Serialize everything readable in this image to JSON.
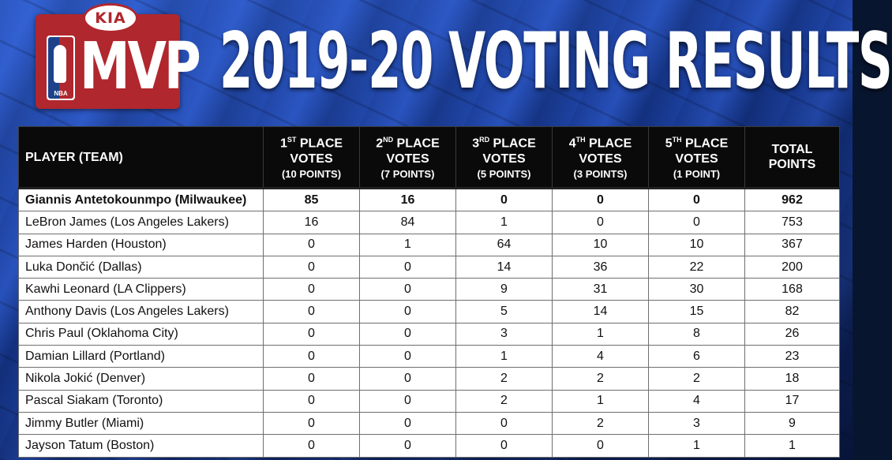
{
  "logo": {
    "kia_text": "KIA",
    "nba_text": "NBA",
    "mvp_text": "MVP"
  },
  "title": "2019-20 VOTING RESULTS",
  "table": {
    "headers": [
      {
        "main": "PLAYER (TEAM)"
      },
      {
        "ordinal": "1",
        "sup": "ST",
        "main": " PLACE",
        "line2": "VOTES",
        "sub": "(10 POINTS)"
      },
      {
        "ordinal": "2",
        "sup": "ND",
        "main": " PLACE",
        "line2": "VOTES",
        "sub": "(7 POINTS)"
      },
      {
        "ordinal": "3",
        "sup": "RD",
        "main": " PLACE",
        "line2": "VOTES",
        "sub": "(5 POINTS)"
      },
      {
        "ordinal": "4",
        "sup": "TH",
        "main": " PLACE",
        "line2": "VOTES",
        "sub": "(3 POINTS)"
      },
      {
        "ordinal": "5",
        "sup": "TH",
        "main": " PLACE",
        "line2": "VOTES",
        "sub": "(1 POINT)"
      },
      {
        "main": "TOTAL",
        "line2": "POINTS"
      }
    ],
    "rows": [
      {
        "player": "Giannis Antetokounmpo (Milwaukee)",
        "v1": "85",
        "v2": "16",
        "v3": "0",
        "v4": "0",
        "v5": "0",
        "total": "962"
      },
      {
        "player": "LeBron James (Los Angeles Lakers)",
        "v1": "16",
        "v2": "84",
        "v3": "1",
        "v4": "0",
        "v5": "0",
        "total": "753"
      },
      {
        "player": "James Harden (Houston)",
        "v1": "0",
        "v2": "1",
        "v3": "64",
        "v4": "10",
        "v5": "10",
        "total": "367"
      },
      {
        "player": "Luka Dončić (Dallas)",
        "v1": "0",
        "v2": "0",
        "v3": "14",
        "v4": "36",
        "v5": "22",
        "total": "200"
      },
      {
        "player": "Kawhi Leonard (LA Clippers)",
        "v1": "0",
        "v2": "0",
        "v3": "9",
        "v4": "31",
        "v5": "30",
        "total": "168"
      },
      {
        "player": "Anthony Davis (Los Angeles Lakers)",
        "v1": "0",
        "v2": "0",
        "v3": "5",
        "v4": "14",
        "v5": "15",
        "total": "82"
      },
      {
        "player": "Chris Paul (Oklahoma City)",
        "v1": "0",
        "v2": "0",
        "v3": "3",
        "v4": "1",
        "v5": "8",
        "total": "26"
      },
      {
        "player": "Damian Lillard (Portland)",
        "v1": "0",
        "v2": "0",
        "v3": "1",
        "v4": "4",
        "v5": "6",
        "total": "23"
      },
      {
        "player": "Nikola Jokić (Denver)",
        "v1": "0",
        "v2": "0",
        "v3": "2",
        "v4": "2",
        "v5": "2",
        "total": "18"
      },
      {
        "player": "Pascal Siakam (Toronto)",
        "v1": "0",
        "v2": "0",
        "v3": "2",
        "v4": "1",
        "v5": "4",
        "total": "17"
      },
      {
        "player": "Jimmy Butler (Miami)",
        "v1": "0",
        "v2": "0",
        "v3": "0",
        "v4": "2",
        "v5": "3",
        "total": "9"
      },
      {
        "player": "Jayson Tatum (Boston)",
        "v1": "0",
        "v2": "0",
        "v3": "0",
        "v4": "0",
        "v5": "1",
        "total": "1"
      }
    ]
  }
}
